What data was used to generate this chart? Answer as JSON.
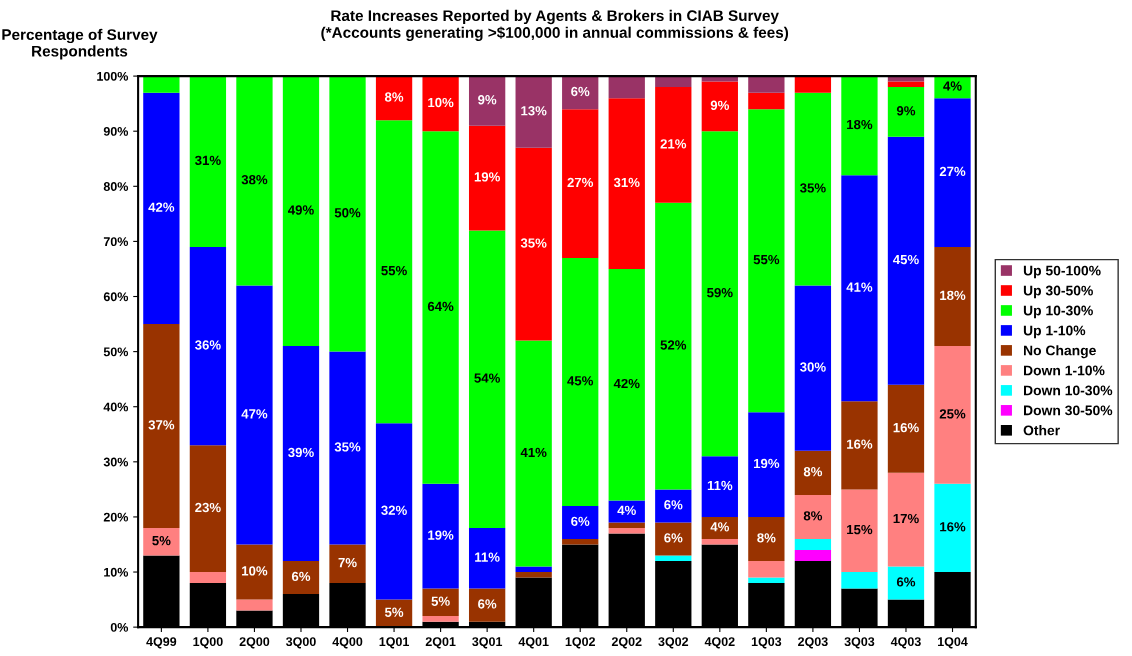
{
  "chart_data": {
    "type": "bar",
    "stacked": true,
    "title": "Rate Increases Reported by Agents & Brokers in CIAB Survey\n(*Accounts generating >$100,000 in annual commissions & fees)",
    "ylabel": "Percentage of Survey\nRespondents",
    "categories": [
      "4Q99",
      "1Q00",
      "2Q00",
      "3Q00",
      "4Q00",
      "1Q01",
      "2Q01",
      "3Q01",
      "4Q01",
      "1Q02",
      "2Q02",
      "3Q02",
      "4Q02",
      "1Q03",
      "2Q03",
      "3Q03",
      "4Q03",
      "1Q04"
    ],
    "ylim": [
      0,
      100
    ],
    "yticks": [
      {
        "value": 0,
        "label": "0%"
      },
      {
        "value": 10,
        "label": "10%"
      },
      {
        "value": 20,
        "label": "20%"
      },
      {
        "value": 30,
        "label": "30%"
      },
      {
        "value": 40,
        "label": "40%"
      },
      {
        "value": 50,
        "label": "50%"
      },
      {
        "value": 60,
        "label": "60%"
      },
      {
        "value": 70,
        "label": "70%"
      },
      {
        "value": 80,
        "label": "80%"
      },
      {
        "value": 90,
        "label": "90%"
      },
      {
        "value": 100,
        "label": "100%"
      }
    ],
    "grid": false,
    "legend": "right",
    "series": [
      {
        "name": "Other",
        "color": "#000000",
        "values": [
          13,
          8,
          3,
          6,
          8,
          null,
          1,
          1,
          9,
          15,
          17,
          12,
          15,
          8,
          12,
          7,
          5,
          10
        ],
        "value_labels": [
          null,
          null,
          null,
          null,
          null,
          null,
          null,
          null,
          null,
          null,
          null,
          null,
          null,
          null,
          null,
          null,
          null,
          null
        ]
      },
      {
        "name": "Down 30-50%",
        "color": "#ff00ff",
        "values": [
          null,
          null,
          null,
          null,
          null,
          null,
          null,
          null,
          null,
          null,
          null,
          null,
          null,
          null,
          2,
          null,
          null,
          null
        ],
        "value_labels": [
          null,
          null,
          null,
          null,
          null,
          null,
          null,
          null,
          null,
          null,
          null,
          null,
          null,
          null,
          null,
          null,
          null,
          null
        ]
      },
      {
        "name": "Down 10-30%",
        "color": "#00ffff",
        "values": [
          null,
          null,
          null,
          null,
          null,
          null,
          null,
          null,
          null,
          null,
          null,
          1,
          null,
          1,
          2,
          3,
          6,
          16
        ],
        "value_labels": [
          null,
          null,
          null,
          null,
          null,
          null,
          null,
          null,
          null,
          null,
          null,
          null,
          null,
          null,
          null,
          null,
          "6%",
          "16%"
        ]
      },
      {
        "name": "Down 1-10%",
        "color": "#ff8080",
        "values": [
          5,
          2,
          2,
          null,
          null,
          null,
          1,
          null,
          null,
          null,
          1,
          null,
          1,
          3,
          8,
          15,
          17,
          25
        ],
        "value_labels": [
          "5%",
          null,
          null,
          null,
          null,
          null,
          null,
          null,
          null,
          null,
          null,
          null,
          null,
          null,
          "8%",
          "15%",
          "17%",
          "25%"
        ]
      },
      {
        "name": "No Change",
        "color": "#993300",
        "values": [
          37,
          23,
          10,
          6,
          7,
          5,
          5,
          6,
          1,
          1,
          1,
          6,
          4,
          8,
          8,
          16,
          16,
          18
        ],
        "value_labels": [
          "37%",
          "23%",
          "10%",
          "6%",
          "7%",
          "5%",
          "5%",
          "6%",
          null,
          null,
          null,
          "6%",
          "4%",
          "8%",
          "8%",
          "16%",
          "16%",
          "18%"
        ]
      },
      {
        "name": "Up 1-10%",
        "color": "#0000ff",
        "values": [
          42,
          36,
          47,
          39,
          35,
          32,
          19,
          11,
          1,
          6,
          4,
          6,
          11,
          19,
          30,
          41,
          45,
          27
        ],
        "value_labels": [
          "42%",
          "36%",
          "47%",
          "39%",
          "35%",
          "32%",
          "19%",
          "11%",
          null,
          "6%",
          "4%",
          "6%",
          "11%",
          "19%",
          "30%",
          "41%",
          "45%",
          "27%"
        ]
      },
      {
        "name": "Up 10-30%",
        "color": "#00ff00",
        "values": [
          3,
          31,
          38,
          49,
          50,
          55,
          64,
          54,
          41,
          45,
          42,
          52,
          59,
          55,
          35,
          18,
          9,
          4
        ],
        "value_labels": [
          null,
          "31%",
          "38%",
          "49%",
          "50%",
          "55%",
          "64%",
          "54%",
          "41%",
          "45%",
          "42%",
          "52%",
          "59%",
          "55%",
          "35%",
          "18%",
          "9%",
          "4%"
        ]
      },
      {
        "name": "Up 30-50%",
        "color": "#ff0000",
        "values": [
          null,
          null,
          null,
          null,
          null,
          8,
          10,
          19,
          35,
          27,
          31,
          21,
          9,
          3,
          3,
          null,
          1,
          null
        ],
        "value_labels": [
          null,
          null,
          null,
          null,
          null,
          "8%",
          "10%",
          "19%",
          "35%",
          "27%",
          "31%",
          "21%",
          "9%",
          null,
          null,
          null,
          null,
          null
        ]
      },
      {
        "name": "Up 50-100%",
        "color": "#993366",
        "values": [
          null,
          null,
          null,
          null,
          null,
          null,
          null,
          9,
          13,
          6,
          4,
          2,
          1,
          3,
          null,
          null,
          1,
          null
        ],
        "value_labels": [
          null,
          null,
          null,
          null,
          null,
          null,
          null,
          "9%",
          "13%",
          "6%",
          null,
          null,
          null,
          null,
          null,
          null,
          null,
          null
        ]
      }
    ]
  }
}
